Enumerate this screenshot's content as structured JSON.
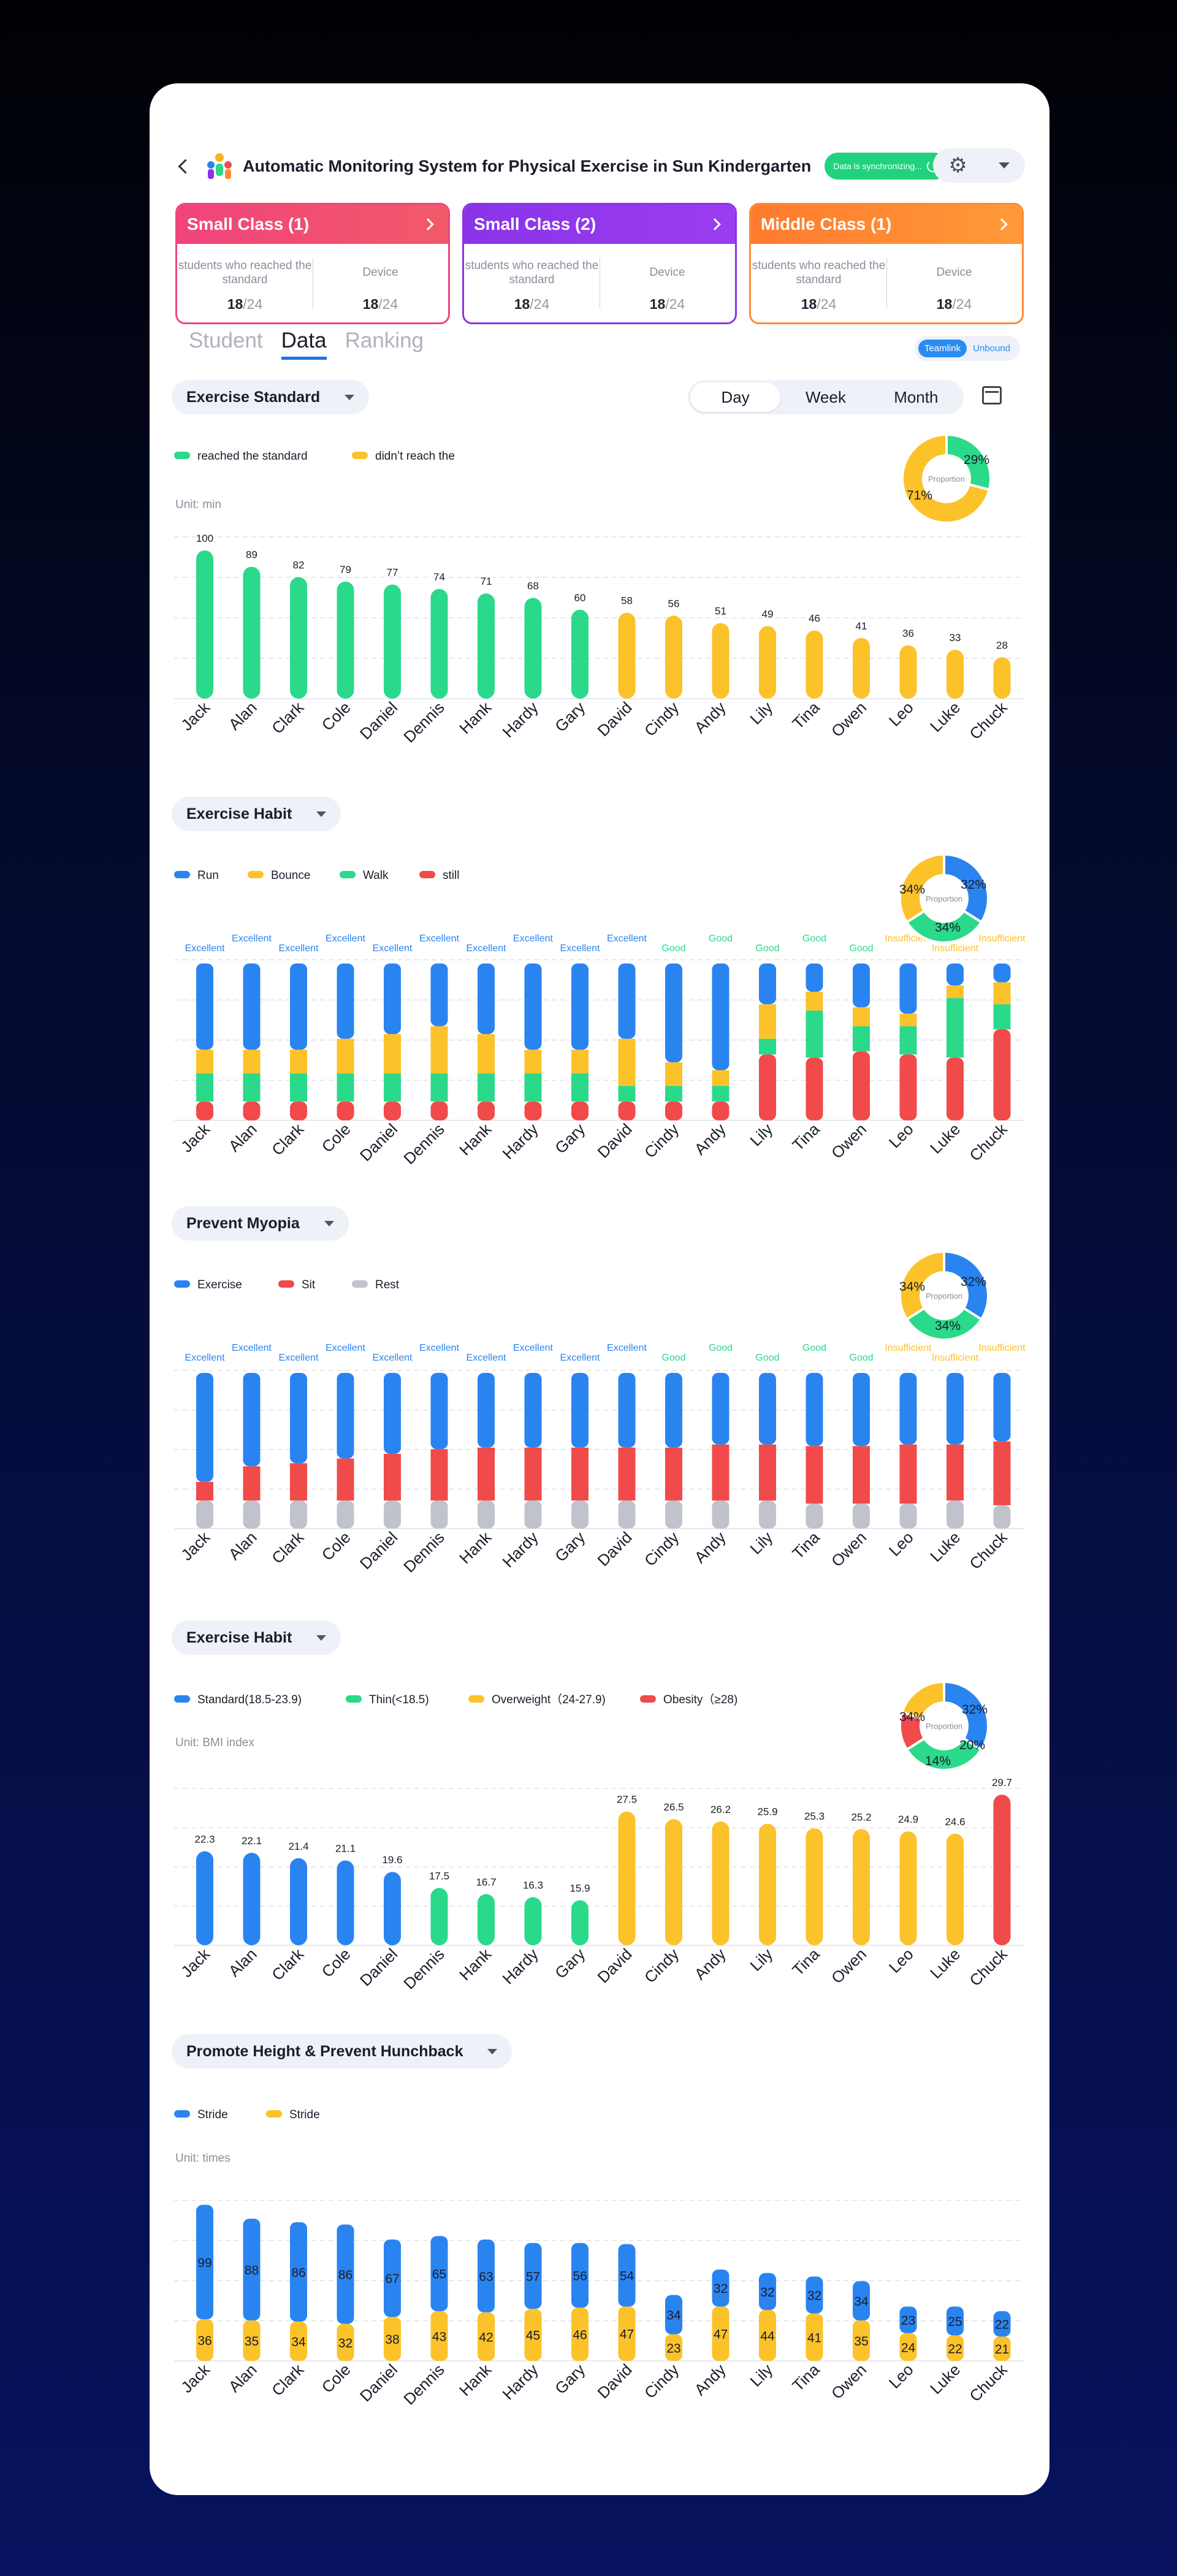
{
  "header": {
    "title": "Automatic Monitoring System for Physical Exercise in Sun Kindergarten",
    "sync_status": "Data is synchronizing..."
  },
  "classes": [
    {
      "name": "Small Class (1)",
      "label1": "students who reached the standard",
      "value1": "18",
      "total1": "/24",
      "label2": "Device",
      "value2": "18",
      "total2": "/24",
      "color": "#f0447a"
    },
    {
      "name": "Small Class (2)",
      "label1": "students who reached the standard",
      "value1": "18",
      "total1": "/24",
      "label2": "Device",
      "value2": "18",
      "total2": "/24",
      "color": "#8a34e8"
    },
    {
      "name": "Middle Class (1)",
      "label1": "students who reached the standard",
      "value1": "18",
      "total1": "/24",
      "label2": "Device",
      "value2": "18",
      "total2": "/24",
      "color": "#ff8a33"
    }
  ],
  "tabs": [
    "Student",
    "Data",
    "Ranking"
  ],
  "active_tab": "Data",
  "teamlink": {
    "on": "Teamlink",
    "off": "Unbound"
  },
  "period": {
    "options": [
      "Day",
      "Week",
      "Month"
    ],
    "selected": "Day"
  },
  "students": [
    "Jack",
    "Alan",
    "Clark",
    "Cole",
    "Daniel",
    "Dennis",
    "Hank",
    "Hardy",
    "Gary",
    "David",
    "Cindy",
    "Andy",
    "Lily",
    "Tina",
    "Owen",
    "Leo",
    "Luke",
    "Chuck"
  ],
  "sections": {
    "s1": {
      "dropdown": "Exercise Standard",
      "unit": "Unit: min",
      "legend": [
        {
          "label": "reached the standard",
          "color": "#2bd98a"
        },
        {
          "label": "didn’t reach the",
          "color": "#fcc22a"
        }
      ],
      "pie_center": "Proportion",
      "pie_labels": [
        "29%",
        "71%"
      ]
    },
    "s2": {
      "dropdown": "Exercise Habit",
      "legend": [
        {
          "label": "Run",
          "color": "#2a84f0"
        },
        {
          "label": "Bounce",
          "color": "#fcc22a"
        },
        {
          "label": "Walk",
          "color": "#2bd98a"
        },
        {
          "label": "still",
          "color": "#f04a4a"
        }
      ],
      "pie_center": "Proportion",
      "pie_labels": [
        "34%",
        "32%",
        "34%"
      ]
    },
    "s3": {
      "dropdown": "Prevent Myopia",
      "legend": [
        {
          "label": "Exercise",
          "color": "#2a84f0"
        },
        {
          "label": "Sit",
          "color": "#f04a4a"
        },
        {
          "label": "Rest",
          "color": "#c0c3cc"
        }
      ],
      "pie_center": "Proportion",
      "pie_labels": [
        "34%",
        "32%",
        "34%"
      ]
    },
    "s4": {
      "dropdown": "Exercise Habit",
      "unit": "Unit: BMI index",
      "legend": [
        {
          "label": "Standard(18.5-23.9)",
          "color": "#2a84f0"
        },
        {
          "label": "Thin(<18.5)",
          "color": "#2bd98a"
        },
        {
          "label": "Overweight（24-27.9)",
          "color": "#fcc22a"
        },
        {
          "label": "Obesity（≥28)",
          "color": "#f04a4a"
        }
      ],
      "pie_center": "Proportion",
      "pie_labels": [
        "34%",
        "32%",
        "20%",
        "14%"
      ]
    },
    "s5": {
      "dropdown": "Promote Height & Prevent Hunchback",
      "unit": "Unit: times",
      "legend": [
        {
          "label": "Stride",
          "color": "#2a84f0"
        },
        {
          "label": "Stride",
          "color": "#fcc22a"
        }
      ]
    }
  },
  "chart_data": [
    {
      "type": "bar",
      "categories": [
        "Jack",
        "Alan",
        "Clark",
        "Cole",
        "Daniel",
        "Dennis",
        "Hank",
        "Hardy",
        "Gary",
        "David",
        "Cindy",
        "Andy",
        "Lily",
        "Tina",
        "Owen",
        "Leo",
        "Luke",
        "Chuck"
      ],
      "values": [
        100,
        89,
        82,
        79,
        77,
        74,
        71,
        68,
        60,
        58,
        56,
        51,
        49,
        46,
        41,
        36,
        33,
        28
      ],
      "colors": [
        "#2bd98a",
        "#2bd98a",
        "#2bd98a",
        "#2bd98a",
        "#2bd98a",
        "#2bd98a",
        "#2bd98a",
        "#2bd98a",
        "#2bd98a",
        "#fcc22a",
        "#fcc22a",
        "#fcc22a",
        "#fcc22a",
        "#fcc22a",
        "#fcc22a",
        "#fcc22a",
        "#fcc22a",
        "#fcc22a"
      ],
      "ylim": [
        0,
        105
      ],
      "pie": [
        {
          "value": 29,
          "color": "#2bd98a"
        },
        {
          "value": 71,
          "color": "#fcc22a"
        }
      ]
    },
    {
      "type": "bar",
      "stacked": true,
      "categories": [
        "Jack",
        "Alan",
        "Clark",
        "Cole",
        "Daniel",
        "Dennis",
        "Hank",
        "Hardy",
        "Gary",
        "David",
        "Cindy",
        "Andy",
        "Lily",
        "Tina",
        "Owen",
        "Leo",
        "Luke",
        "Chuck"
      ],
      "series": [
        {
          "name": "still",
          "color": "#f04a4a",
          "values": [
            12,
            12,
            12,
            12,
            12,
            12,
            12,
            12,
            12,
            12,
            12,
            12,
            42,
            40,
            44,
            42,
            40,
            58
          ]
        },
        {
          "name": "Walk",
          "color": "#2bd98a",
          "values": [
            18,
            18,
            18,
            18,
            18,
            18,
            18,
            18,
            18,
            10,
            10,
            10,
            10,
            30,
            16,
            18,
            38,
            16
          ]
        },
        {
          "name": "Bounce",
          "color": "#fcc22a",
          "values": [
            15,
            15,
            15,
            22,
            25,
            30,
            25,
            15,
            15,
            30,
            15,
            10,
            22,
            12,
            12,
            8,
            8,
            14
          ]
        },
        {
          "name": "Run",
          "color": "#2a84f0",
          "values": [
            55,
            55,
            55,
            48,
            45,
            40,
            45,
            55,
            55,
            48,
            63,
            68,
            26,
            18,
            28,
            32,
            14,
            12
          ]
        }
      ],
      "ratings": [
        "Excellent",
        "Excellent",
        "Excellent",
        "Excellent",
        "Excellent",
        "Excellent",
        "Excellent",
        "Excellent",
        "Excellent",
        "Excellent",
        "Good",
        "Good",
        "Good",
        "Good",
        "Good",
        "Insufficient",
        "Insufficient",
        "Insufficient"
      ],
      "rating_colors": {
        "Excellent": "#2a84f0",
        "Good": "#2bd98a",
        "Insufficient": "#fcc22a"
      },
      "ylim": [
        0,
        100
      ],
      "pie": [
        {
          "value": 34,
          "color": "#2a84f0"
        },
        {
          "value": 32,
          "color": "#2bd98a"
        },
        {
          "value": 34,
          "color": "#fcc22a"
        }
      ]
    },
    {
      "type": "bar",
      "stacked": true,
      "categories": [
        "Jack",
        "Alan",
        "Clark",
        "Cole",
        "Daniel",
        "Dennis",
        "Hank",
        "Hardy",
        "Gary",
        "David",
        "Cindy",
        "Andy",
        "Lily",
        "Tina",
        "Owen",
        "Leo",
        "Luke",
        "Chuck"
      ],
      "series": [
        {
          "name": "Rest",
          "color": "#c0c3cc",
          "values": [
            18,
            18,
            18,
            18,
            18,
            18,
            18,
            18,
            18,
            18,
            18,
            18,
            18,
            16,
            16,
            16,
            18,
            15
          ]
        },
        {
          "name": "Sit",
          "color": "#f04a4a",
          "values": [
            12,
            22,
            24,
            27,
            30,
            33,
            34,
            34,
            34,
            34,
            34,
            36,
            36,
            37,
            37,
            38,
            36,
            41
          ]
        },
        {
          "name": "Exercise",
          "color": "#2a84f0",
          "values": [
            70,
            60,
            58,
            55,
            52,
            49,
            48,
            48,
            48,
            48,
            48,
            46,
            46,
            47,
            47,
            46,
            46,
            44
          ]
        }
      ],
      "ratings": [
        "Excellent",
        "Excellent",
        "Excellent",
        "Excellent",
        "Excellent",
        "Excellent",
        "Excellent",
        "Excellent",
        "Excellent",
        "Excellent",
        "Good",
        "Good",
        "Good",
        "Good",
        "Good",
        "Insufficient",
        "Insufficient",
        "Insufficient"
      ],
      "rating_colors": {
        "Excellent": "#2a84f0",
        "Good": "#2bd98a",
        "Insufficient": "#fcc22a"
      },
      "ylim": [
        0,
        100
      ],
      "pie": [
        {
          "value": 34,
          "color": "#2a84f0"
        },
        {
          "value": 32,
          "color": "#2bd98a"
        },
        {
          "value": 34,
          "color": "#fcc22a"
        }
      ]
    },
    {
      "type": "bar",
      "categories": [
        "Jack",
        "Alan",
        "Clark",
        "Cole",
        "Daniel",
        "Dennis",
        "Hank",
        "Hardy",
        "Gary",
        "David",
        "Cindy",
        "Andy",
        "Lily",
        "Tina",
        "Owen",
        "Leo",
        "Luke",
        "Chuck"
      ],
      "values": [
        22.3,
        22.1,
        21.4,
        21.1,
        19.6,
        17.5,
        16.7,
        16.3,
        15.9,
        27.5,
        26.5,
        26.2,
        25.9,
        25.3,
        25.2,
        24.9,
        24.6,
        29.7
      ],
      "colors": [
        "#2a84f0",
        "#2a84f0",
        "#2a84f0",
        "#2a84f0",
        "#2a84f0",
        "#2bd98a",
        "#2bd98a",
        "#2bd98a",
        "#2bd98a",
        "#fcc22a",
        "#fcc22a",
        "#fcc22a",
        "#fcc22a",
        "#fcc22a",
        "#fcc22a",
        "#fcc22a",
        "#fcc22a",
        "#f04a4a"
      ],
      "ylim": [
        10,
        31
      ],
      "pie": [
        {
          "value": 34,
          "color": "#2a84f0"
        },
        {
          "value": 32,
          "color": "#2bd98a"
        },
        {
          "value": 14,
          "color": "#f04a4a"
        },
        {
          "value": 20,
          "color": "#fcc22a"
        }
      ]
    },
    {
      "type": "bar",
      "stacked": true,
      "categories": [
        "Jack",
        "Alan",
        "Clark",
        "Cole",
        "Daniel",
        "Dennis",
        "Hank",
        "Hardy",
        "Gary",
        "David",
        "Cindy",
        "Andy",
        "Lily",
        "Tina",
        "Owen",
        "Leo",
        "Luke",
        "Chuck"
      ],
      "series": [
        {
          "name": "Stride",
          "color": "#fcc22a",
          "values": [
            36,
            35,
            34,
            32,
            38,
            43,
            42,
            45,
            46,
            47,
            23,
            47,
            44,
            41,
            35,
            24,
            22,
            21
          ]
        },
        {
          "name": "Stride",
          "color": "#2a84f0",
          "values": [
            99,
            88,
            86,
            86,
            67,
            65,
            63,
            57,
            56,
            54,
            34,
            32,
            32,
            32,
            34,
            23,
            25,
            22
          ]
        }
      ],
      "ylim": [
        0,
        140
      ]
    }
  ]
}
